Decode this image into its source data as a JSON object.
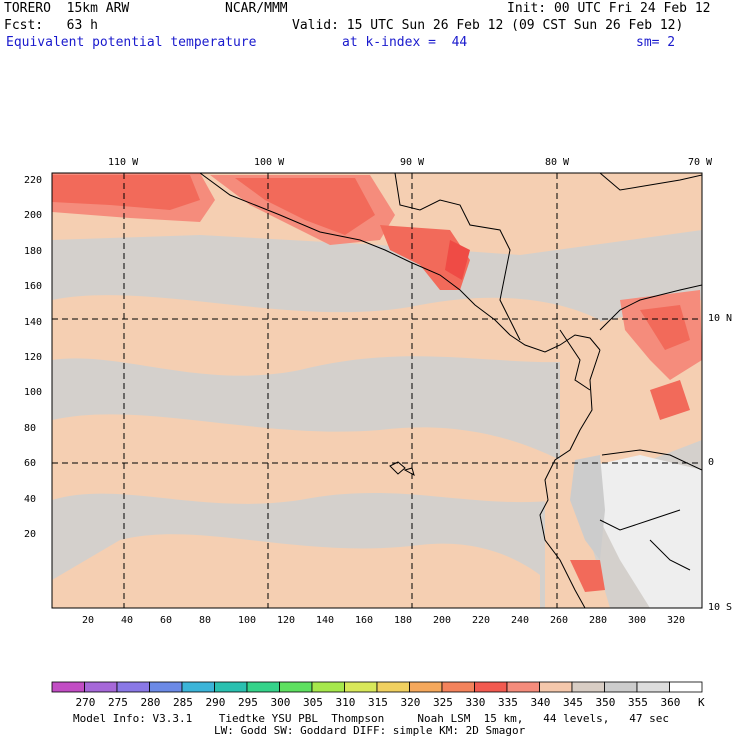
{
  "header": {
    "model": "TORERO  15km ARW",
    "org": "NCAR/MMM",
    "init": "Init: 00 UTC Fri 24 Feb 12",
    "fcst": "Fcst:   63 h",
    "valid": "Valid: 15 UTC Sun 26 Feb 12 (09 CST Sun 26 Feb 12)",
    "field": "Equivalent potential temperature",
    "level": "at k-index =  44",
    "smooth": "sm= 2"
  },
  "map": {
    "lon_labels": [
      "110 W",
      "100 W",
      "90 W",
      "80 W",
      "70 W"
    ],
    "lat_labels": [
      "10 N",
      "0",
      "10 S"
    ],
    "y_ticks": [
      "220",
      "200",
      "180",
      "160",
      "140",
      "120",
      "100",
      "80",
      "60",
      "40",
      "20"
    ],
    "x_ticks": [
      "20",
      "40",
      "60",
      "80",
      "100",
      "120",
      "140",
      "160",
      "180",
      "200",
      "220",
      "240",
      "260",
      "280",
      "300",
      "320"
    ],
    "colors": {
      "land_border": "#000000",
      "bg_warm": "#f5cfb2",
      "bg_gray": "#d4d0cc",
      "hot": "#f26a5a",
      "hotter": "#ef4b45",
      "snow": "#eeeeee"
    }
  },
  "colorbar": {
    "labels": [
      "270",
      "275",
      "280",
      "285",
      "290",
      "295",
      "300",
      "305",
      "310",
      "315",
      "320",
      "325",
      "330",
      "335",
      "340",
      "345",
      "350",
      "355",
      "360"
    ],
    "unit": "K",
    "colors": [
      "#c24dc4",
      "#a668d8",
      "#8a78e6",
      "#6c8ae6",
      "#3cb4d8",
      "#2ac0b0",
      "#35d38a",
      "#5ee060",
      "#a6e84c",
      "#d8e85a",
      "#f0d060",
      "#f5a85c",
      "#f4835c",
      "#f25a50",
      "#f58c7c",
      "#f5c8ac",
      "#d8cdc4",
      "#cccccc",
      "#dddddd",
      "#ffffff"
    ]
  },
  "footer": {
    "line1": "Model Info: V3.3.1    Tiedtke YSU PBL  Thompson     Noah LSM  15 km,   44 levels,   47 sec",
    "line2": "LW: Godd SW: Goddard DIFF: simple KM: 2D Smagor"
  }
}
